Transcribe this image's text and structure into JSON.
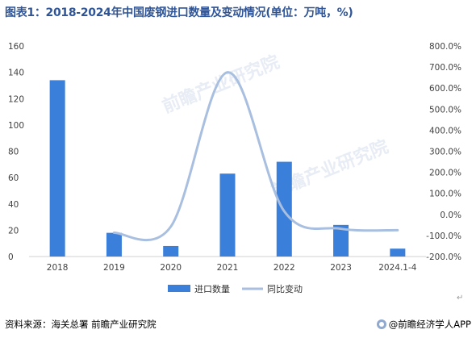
{
  "title": "图表1：2018-2024年中国废钢进口数量及变动情况(单位：万吨，%)",
  "source": "资料来源：海关总署 前瞻产业研究院",
  "brand": "@前瞻经济学人APP",
  "watermark": "前瞻产业研究院",
  "para_mark": "↵",
  "colors": {
    "bar": "#3a7fd9",
    "line": "#a9bfe0",
    "axis_text": "#404040",
    "axis_line": "#d0d0d0"
  },
  "chart_data": {
    "type": "bar",
    "categories": [
      "2018",
      "2019",
      "2020",
      "2021",
      "2022",
      "2023",
      "2024.1-4"
    ],
    "series": [
      {
        "name": "进口数量",
        "type": "bar",
        "axis": "left",
        "values": [
          134,
          18,
          8,
          63,
          72,
          24,
          6
        ]
      },
      {
        "name": "同比变动",
        "type": "line",
        "axis": "right",
        "smooth": true,
        "values": [
          null,
          -87,
          -58,
          675,
          15,
          -68,
          -75
        ]
      }
    ],
    "y_left": {
      "min": 0,
      "max": 160,
      "ticks": [
        "0",
        "20",
        "40",
        "60",
        "80",
        "100",
        "120",
        "140",
        "160"
      ]
    },
    "y_right": {
      "min": -200,
      "max": 800,
      "ticks": [
        "-200.0%",
        "-100.0%",
        "0.0%",
        "100.0%",
        "200.0%",
        "300.0%",
        "400.0%",
        "500.0%",
        "600.0%",
        "700.0%",
        "800.0%"
      ]
    },
    "legend": {
      "position": "bottom",
      "items": [
        "进口数量",
        "同比变动"
      ]
    },
    "grid": false
  }
}
